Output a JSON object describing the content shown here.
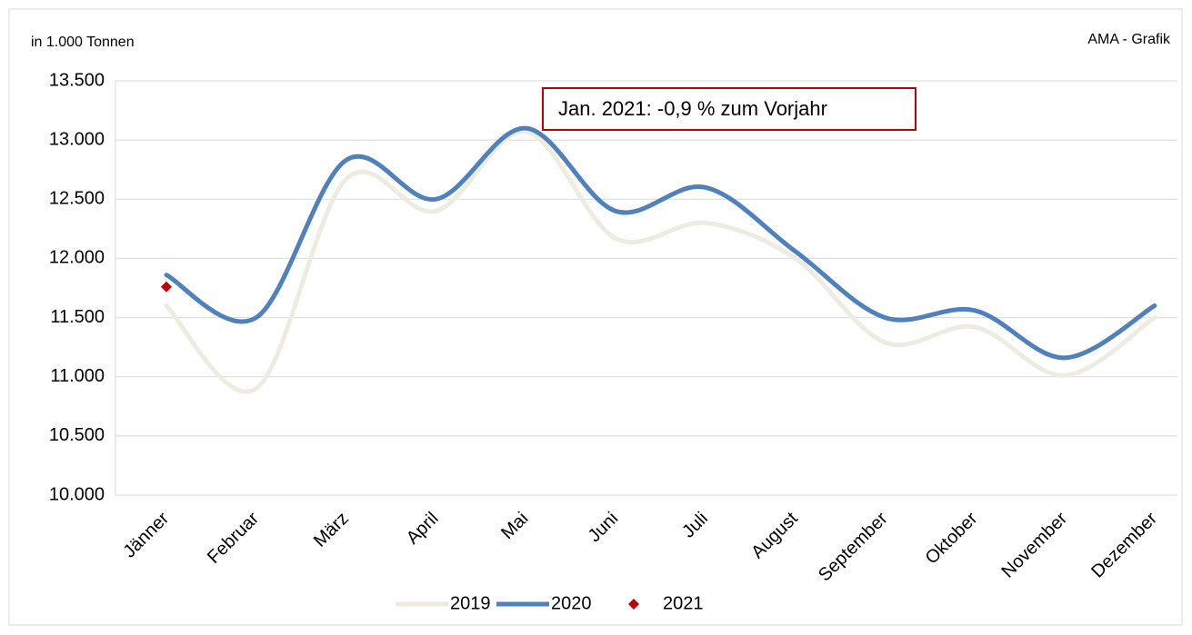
{
  "chart_data": {
    "type": "line",
    "y_label": "in 1.000 Tonnen",
    "source": "AMA - Grafik",
    "annotation": "Jan. 2021: -0,9 % zum Vorjahr",
    "categories": [
      "Jänner",
      "Februar",
      "März",
      "April",
      "Mai",
      "Juni",
      "Juli",
      "August",
      "September",
      "Oktober",
      "November",
      "Dezember"
    ],
    "series": [
      {
        "name": "2019",
        "color": "#eeece1",
        "values": [
          11600,
          10900,
          12670,
          12400,
          13070,
          12170,
          12300,
          12000,
          11290,
          11420,
          11010,
          11500
        ]
      },
      {
        "name": "2020",
        "color": "#4f81bd",
        "values": [
          11860,
          11500,
          12830,
          12500,
          13100,
          12400,
          12600,
          12060,
          11500,
          11560,
          11160,
          11600
        ]
      },
      {
        "name": "2021",
        "color": "#c00000",
        "marker": "diamond",
        "values": [
          11760,
          null,
          null,
          null,
          null,
          null,
          null,
          null,
          null,
          null,
          null,
          null
        ]
      }
    ],
    "ylim": [
      10000,
      13500
    ],
    "yticks": [
      {
        "value": 10000,
        "label": "10.000"
      },
      {
        "value": 10500,
        "label": "10.500"
      },
      {
        "value": 11000,
        "label": "11.000"
      },
      {
        "value": 11500,
        "label": "11.500"
      },
      {
        "value": 12000,
        "label": "12.000"
      },
      {
        "value": 12500,
        "label": "12.500"
      },
      {
        "value": 13000,
        "label": "13.000"
      },
      {
        "value": 13500,
        "label": "13.500"
      }
    ],
    "grid": true,
    "legend": "bottom"
  }
}
